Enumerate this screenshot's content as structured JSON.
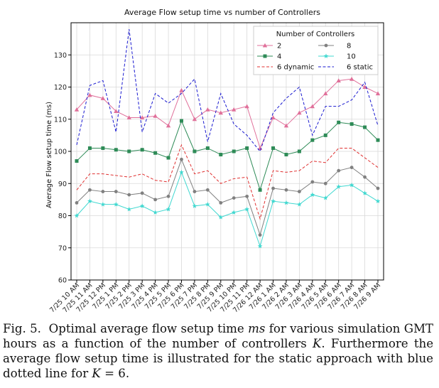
{
  "chart_data": {
    "type": "line",
    "title": "Average Flow setup time vs number of Controllers",
    "xlabel": "",
    "ylabel": "Average Flow setup time (ms)",
    "ylim": [
      60,
      140
    ],
    "yticks": [
      60,
      70,
      80,
      90,
      100,
      110,
      120,
      130
    ],
    "grid": true,
    "legend_title": "Number of Controllers",
    "legend_position": "top-right",
    "categories": [
      "7/25 10 AM",
      "7/25 11 AM",
      "7/25 12 PM",
      "7/25 1 PM",
      "7/25 2 PM",
      "7/25 3 PM",
      "7/25 4 PM",
      "7/25 5 PM",
      "7/25 6 PM",
      "7/25 7 PM",
      "7/25 8 PM",
      "7/25 9 PM",
      "7/25 10 PM",
      "7/25 11 PM",
      "7/26 12 AM",
      "7/26 1 AM",
      "7/26 2 AM",
      "7/26 3 AM",
      "7/26 4 AM",
      "7/26 5 AM",
      "7/26 6 AM",
      "7/26 7 AM",
      "7/26 8 AM",
      "7/26 9 AM"
    ],
    "series": [
      {
        "name": "2",
        "color": "#e0709a",
        "style": "solid",
        "marker": "triangle",
        "values": [
          113,
          117.5,
          116.5,
          112.5,
          110.5,
          110.5,
          111,
          108,
          119,
          110,
          113,
          112,
          113,
          114,
          101,
          110.5,
          108,
          112,
          114,
          118,
          122,
          122.5,
          120,
          118
        ]
      },
      {
        "name": "8",
        "color": "#808080",
        "style": "solid",
        "marker": "circle",
        "values": [
          84,
          88,
          87.5,
          87.5,
          86.5,
          87,
          85,
          86,
          97.5,
          87.5,
          88,
          84,
          85.5,
          86,
          74,
          88.5,
          88,
          87.5,
          90.5,
          90,
          94,
          95,
          92,
          88.5
        ]
      },
      {
        "name": "4",
        "color": "#2e8b57",
        "style": "solid",
        "marker": "square",
        "values": [
          97,
          101,
          101,
          100.5,
          100,
          100.5,
          99.5,
          98,
          109.5,
          100,
          101,
          99,
          100,
          101,
          88,
          101,
          99,
          100,
          103.5,
          105,
          109,
          108.5,
          107.5,
          103.5
        ]
      },
      {
        "name": "10",
        "color": "#40d8d0",
        "style": "solid",
        "marker": "star",
        "values": [
          80,
          84.5,
          83.5,
          83.5,
          82,
          83,
          81,
          82,
          93.5,
          83,
          83.5,
          79.5,
          81,
          82,
          70.5,
          84.5,
          84,
          83.5,
          86.5,
          85.5,
          89,
          89.5,
          87,
          84.5
        ]
      },
      {
        "name": "6 dynamic",
        "color": "#e03030",
        "style": "dashed",
        "marker": "none",
        "values": [
          88,
          93,
          93,
          92.5,
          92,
          93,
          91,
          90.5,
          102,
          93,
          94,
          90,
          91.5,
          92,
          79,
          94,
          93.5,
          94,
          97,
          96.5,
          101,
          101,
          98,
          95
        ]
      },
      {
        "name": "6 static",
        "color": "#1a1ad0",
        "style": "dashed",
        "marker": "none",
        "values": [
          102,
          120.5,
          122,
          106,
          138,
          106,
          118,
          115,
          118,
          122.5,
          103,
          118,
          108.5,
          105,
          100,
          112,
          116.5,
          120,
          105,
          114,
          114,
          116,
          121.5,
          108
        ]
      }
    ],
    "legend_order": [
      "2",
      "8",
      "4",
      "10",
      "6 dynamic",
      "6 static"
    ]
  },
  "caption": {
    "fig_label": "Fig. 5.",
    "part1": "Optimal average flow setup time",
    "ms": "ms",
    "part2": "for various simulation GMT hours as a function of the number of controllers",
    "k": "K",
    "part3": ". Furthermore the average flow setup time is illustrated for the static approach with blue dotted line for",
    "k2": "K",
    "eq": "= 6."
  }
}
